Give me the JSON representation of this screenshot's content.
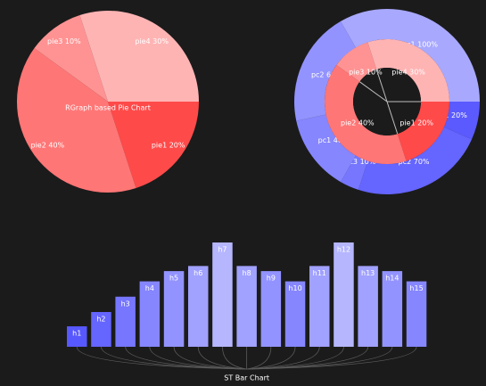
{
  "chart_data": [
    {
      "type": "pie",
      "title": "RGraph based Pie Chart",
      "slices": [
        {
          "label": "pie1 20%",
          "value": 20,
          "color": "#ff4a4a"
        },
        {
          "label": "pie2 40%",
          "value": 40,
          "color": "#ff7676"
        },
        {
          "label": "pie3 10%",
          "value": 10,
          "color": "#ff9393"
        },
        {
          "label": "pie4 30%",
          "value": 30,
          "color": "#ffb4b4"
        }
      ]
    },
    {
      "type": "pie",
      "title": "",
      "outer_ring": [
        {
          "label": "pc1 20%",
          "value": 20,
          "color": "#5a5aff"
        },
        {
          "label": "pc2 70%",
          "value": 70,
          "color": "#6565ff"
        },
        {
          "label": "pc3 10%",
          "value": 10,
          "color": "#7676ff"
        },
        {
          "label": "pc1 40%",
          "value": 40,
          "color": "#8686ff"
        },
        {
          "label": "pc2 60%",
          "value": 60,
          "color": "#9393ff"
        },
        {
          "label": "pc1 100%",
          "value": 100,
          "color": "#a8a8ff"
        }
      ],
      "inner_ring": [
        {
          "label": "pie1 20%",
          "value": 20,
          "color": "#ff4a4a"
        },
        {
          "label": "pie2 40%",
          "value": 40,
          "color": "#ff7676"
        },
        {
          "label": "pie3 10%",
          "value": 10,
          "color": "#ff9393"
        },
        {
          "label": "pie4 30%",
          "value": 30,
          "color": "#ffb4b4"
        }
      ],
      "center_color": "#1b1b1b"
    },
    {
      "type": "bar",
      "title": "ST Bar Chart",
      "categories": [
        "h1",
        "h2",
        "h3",
        "h4",
        "h5",
        "h6",
        "h7",
        "h8",
        "h9",
        "h10",
        "h11",
        "h12",
        "h13",
        "h14",
        "h15"
      ],
      "values": [
        2,
        3.4,
        4.9,
        6.4,
        7.4,
        7.9,
        10.2,
        7.9,
        7.4,
        6.4,
        7.9,
        10.2,
        7.9,
        7.4,
        6.4
      ],
      "colors": [
        "#5858ff",
        "#6565ff",
        "#7676ff",
        "#8686ff",
        "#9393ff",
        "#a1a1ff",
        "#b6b6ff",
        "#a1a1ff",
        "#9393ff",
        "#8686ff",
        "#a1a1ff",
        "#b6b6ff",
        "#a1a1ff",
        "#9393ff",
        "#8686ff"
      ],
      "ylim": [
        0,
        10.2
      ],
      "grid": false
    }
  ]
}
